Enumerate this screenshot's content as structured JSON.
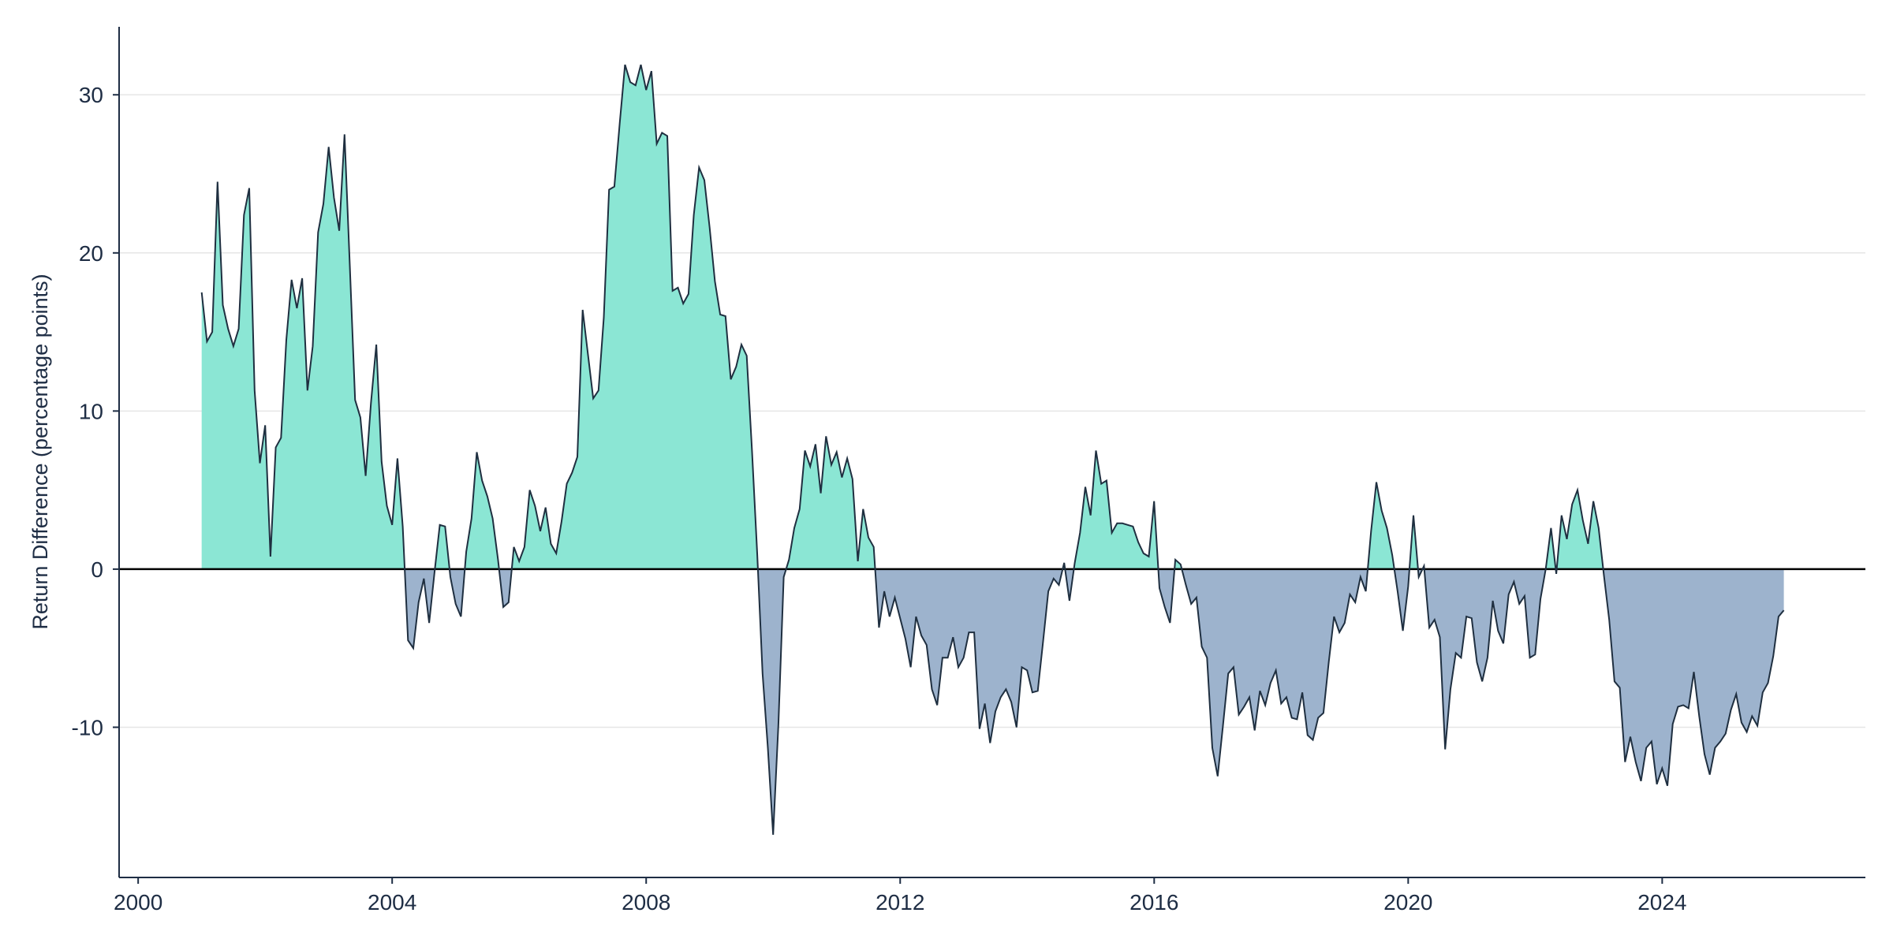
{
  "chart_data": {
    "type": "area",
    "title": "",
    "xlabel": "",
    "ylabel": "Return Difference (percentage points)",
    "x_start": 2001.0,
    "x_step_years": 0.08333,
    "xlim": [
      1999.7,
      2027.2
    ],
    "ylim": [
      -19.5,
      34.3
    ],
    "x_ticks": [
      2000,
      2004,
      2008,
      2012,
      2016,
      2020,
      2024
    ],
    "x_tick_labels": [
      "2000",
      "2004",
      "2008",
      "2012",
      "2016",
      "2020",
      "2024"
    ],
    "y_ticks": [
      -10,
      0,
      10,
      20,
      30
    ],
    "y_tick_labels": [
      "-10",
      "0",
      "10",
      "20",
      "30"
    ],
    "grid": "horizontal",
    "colors": {
      "positive": "#8be6d4",
      "negative": "#9db3cd",
      "line": "#1f2f40",
      "zero": "#000000",
      "grid": "#e6e6e6",
      "axis": "#1e2d44"
    },
    "values": [
      17.5,
      14.4,
      15.0,
      24.5,
      16.7,
      15.2,
      14.1,
      15.2,
      22.4,
      24.1,
      11.3,
      6.7,
      9.1,
      0.8,
      7.7,
      8.3,
      14.5,
      18.3,
      16.5,
      18.4,
      11.3,
      14.1,
      21.3,
      23.1,
      26.7,
      23.5,
      21.4,
      27.5,
      19.2,
      10.7,
      9.6,
      5.9,
      10.5,
      14.2,
      6.8,
      4.0,
      2.8,
      7.0,
      2.7,
      -4.5,
      -5.0,
      -2.1,
      -0.6,
      -3.4,
      -0.2,
      2.8,
      2.7,
      -0.5,
      -2.2,
      -3.0,
      1.1,
      3.2,
      7.4,
      5.6,
      4.6,
      3.2,
      0.6,
      -2.4,
      -2.1,
      1.4,
      0.5,
      1.4,
      5.0,
      4.0,
      2.4,
      3.9,
      1.6,
      1.0,
      3.0,
      5.4,
      6.1,
      7.1,
      16.4,
      13.6,
      10.8,
      11.3,
      15.9,
      24.0,
      24.2,
      28.2,
      31.9,
      30.8,
      30.6,
      31.9,
      30.3,
      31.5,
      26.9,
      27.6,
      27.4,
      17.6,
      17.8,
      16.8,
      17.4,
      22.4,
      25.4,
      24.6,
      21.6,
      18.2,
      16.1,
      16.0,
      12.0,
      12.8,
      14.2,
      13.5,
      7.5,
      0.9,
      -6.6,
      -11.3,
      -16.8,
      -9.8,
      -0.5,
      0.6,
      2.6,
      3.8,
      7.5,
      6.5,
      7.9,
      4.8,
      8.4,
      6.6,
      7.4,
      5.8,
      7.0,
      5.7,
      0.5,
      3.8,
      2.0,
      1.4,
      -3.7,
      -1.4,
      -3.0,
      -1.8,
      -3.1,
      -4.4,
      -6.2,
      -3.0,
      -4.2,
      -4.8,
      -7.6,
      -8.6,
      -5.6,
      -5.6,
      -4.3,
      -6.2,
      -5.6,
      -4.0,
      -4.0,
      -10.1,
      -8.5,
      -11.0,
      -9.0,
      -8.1,
      -7.6,
      -8.4,
      -10.0,
      -6.2,
      -6.4,
      -7.8,
      -7.7,
      -4.6,
      -1.4,
      -0.6,
      -1.0,
      0.4,
      -2.0,
      0.4,
      2.3,
      5.2,
      3.4,
      7.5,
      5.4,
      5.6,
      2.3,
      2.9,
      2.9,
      2.8,
      2.7,
      1.7,
      1.0,
      0.8,
      4.3,
      -1.2,
      -2.4,
      -3.4,
      0.6,
      0.3,
      -1.0,
      -2.2,
      -1.8,
      -4.9,
      -5.6,
      -11.3,
      -13.1,
      -9.9,
      -6.6,
      -6.2,
      -9.2,
      -8.7,
      -8.1,
      -10.2,
      -7.7,
      -8.6,
      -7.2,
      -6.4,
      -8.5,
      -8.1,
      -9.4,
      -9.5,
      -7.8,
      -10.5,
      -10.8,
      -9.4,
      -9.1,
      -5.9,
      -3.0,
      -4.0,
      -3.4,
      -1.6,
      -2.1,
      -0.5,
      -1.4,
      2.4,
      5.5,
      3.7,
      2.6,
      0.9,
      -1.4,
      -3.9,
      -1.1,
      3.4,
      -0.5,
      0.2,
      -3.7,
      -3.2,
      -4.3,
      -11.4,
      -7.6,
      -5.3,
      -5.6,
      -3.0,
      -3.1,
      -5.9,
      -7.1,
      -5.6,
      -2.0,
      -3.9,
      -4.7,
      -1.6,
      -0.8,
      -2.2,
      -1.7,
      -5.6,
      -5.4,
      -1.9,
      0.0,
      2.6,
      -0.3,
      3.4,
      1.9,
      4.1,
      5.0,
      3.1,
      1.6,
      4.3,
      2.6,
      -0.4,
      -3.2,
      -7.1,
      -7.5,
      -12.2,
      -10.6,
      -12.2,
      -13.4,
      -11.3,
      -10.9,
      -13.6,
      -12.6,
      -13.7,
      -9.8,
      -8.7,
      -8.6,
      -8.8,
      -6.5,
      -9.3,
      -11.7,
      -13.0,
      -11.3,
      -10.9,
      -10.4,
      -8.9,
      -7.9,
      -9.7,
      -10.3,
      -9.3,
      -9.9,
      -7.8,
      -7.2,
      -5.5,
      -3.0,
      -2.6
    ]
  }
}
